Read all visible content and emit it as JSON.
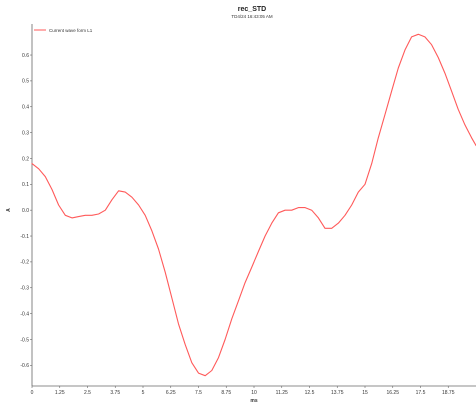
{
  "chart_data": {
    "type": "line",
    "title": "rec_STD",
    "subtitle": "TD4/24 16:43:05 AM",
    "xlabel": "ms",
    "ylabel": "A",
    "xlim": [
      0,
      20
    ],
    "ylim": [
      -0.68,
      0.72
    ],
    "x_ticks": [
      "0",
      "1.25",
      "2.5",
      "3.75",
      "5",
      "6.25",
      "7.5",
      "8.75",
      "10",
      "11.25",
      "12.5",
      "13.75",
      "15",
      "16.25",
      "17.5",
      "18.75"
    ],
    "x_tick_values": [
      0,
      1.25,
      2.5,
      3.75,
      5,
      6.25,
      7.5,
      8.75,
      10,
      11.25,
      12.5,
      13.75,
      15,
      16.25,
      17.5,
      18.75
    ],
    "y_ticks": [
      "0.6",
      "0.5",
      "0.4",
      "0.3",
      "0.2",
      "0.1",
      "0.0",
      "-0.1",
      "-0.2",
      "-0.3",
      "-0.4",
      "-0.5",
      "-0.6"
    ],
    "y_tick_values": [
      0.6,
      0.5,
      0.4,
      0.3,
      0.2,
      0.1,
      0.0,
      -0.1,
      -0.2,
      -0.3,
      -0.4,
      -0.5,
      -0.6
    ],
    "grid": false,
    "legend": "top-left",
    "series": [
      {
        "name": "Current wave form L1",
        "color": "#ff5a5a",
        "x": [
          0,
          0.3,
          0.6,
          0.9,
          1.2,
          1.5,
          1.8,
          2.1,
          2.4,
          2.7,
          3.0,
          3.3,
          3.6,
          3.9,
          4.2,
          4.5,
          4.8,
          5.1,
          5.4,
          5.7,
          6.0,
          6.3,
          6.6,
          6.9,
          7.2,
          7.5,
          7.8,
          8.1,
          8.4,
          8.7,
          9.0,
          9.3,
          9.6,
          9.9,
          10.2,
          10.5,
          10.8,
          11.1,
          11.4,
          11.7,
          12.0,
          12.3,
          12.6,
          12.9,
          13.2,
          13.5,
          13.8,
          14.1,
          14.4,
          14.7,
          15.0,
          15.3,
          15.6,
          15.9,
          16.2,
          16.5,
          16.8,
          17.1,
          17.4,
          17.7,
          18.0,
          18.3,
          18.6,
          18.9,
          19.2,
          19.5,
          19.8,
          20.0
        ],
        "y": [
          0.18,
          0.16,
          0.13,
          0.08,
          0.02,
          -0.02,
          -0.03,
          -0.025,
          -0.02,
          -0.02,
          -0.015,
          0.0,
          0.04,
          0.075,
          0.07,
          0.05,
          0.02,
          -0.02,
          -0.08,
          -0.15,
          -0.24,
          -0.34,
          -0.44,
          -0.52,
          -0.59,
          -0.63,
          -0.64,
          -0.62,
          -0.57,
          -0.5,
          -0.42,
          -0.35,
          -0.28,
          -0.22,
          -0.16,
          -0.1,
          -0.05,
          -0.01,
          0.0,
          0.0,
          0.01,
          0.01,
          0.0,
          -0.03,
          -0.07,
          -0.07,
          -0.05,
          -0.02,
          0.02,
          0.07,
          0.1,
          0.18,
          0.28,
          0.37,
          0.46,
          0.55,
          0.62,
          0.67,
          0.68,
          0.67,
          0.64,
          0.59,
          0.53,
          0.46,
          0.39,
          0.33,
          0.28,
          0.25
        ]
      }
    ]
  }
}
